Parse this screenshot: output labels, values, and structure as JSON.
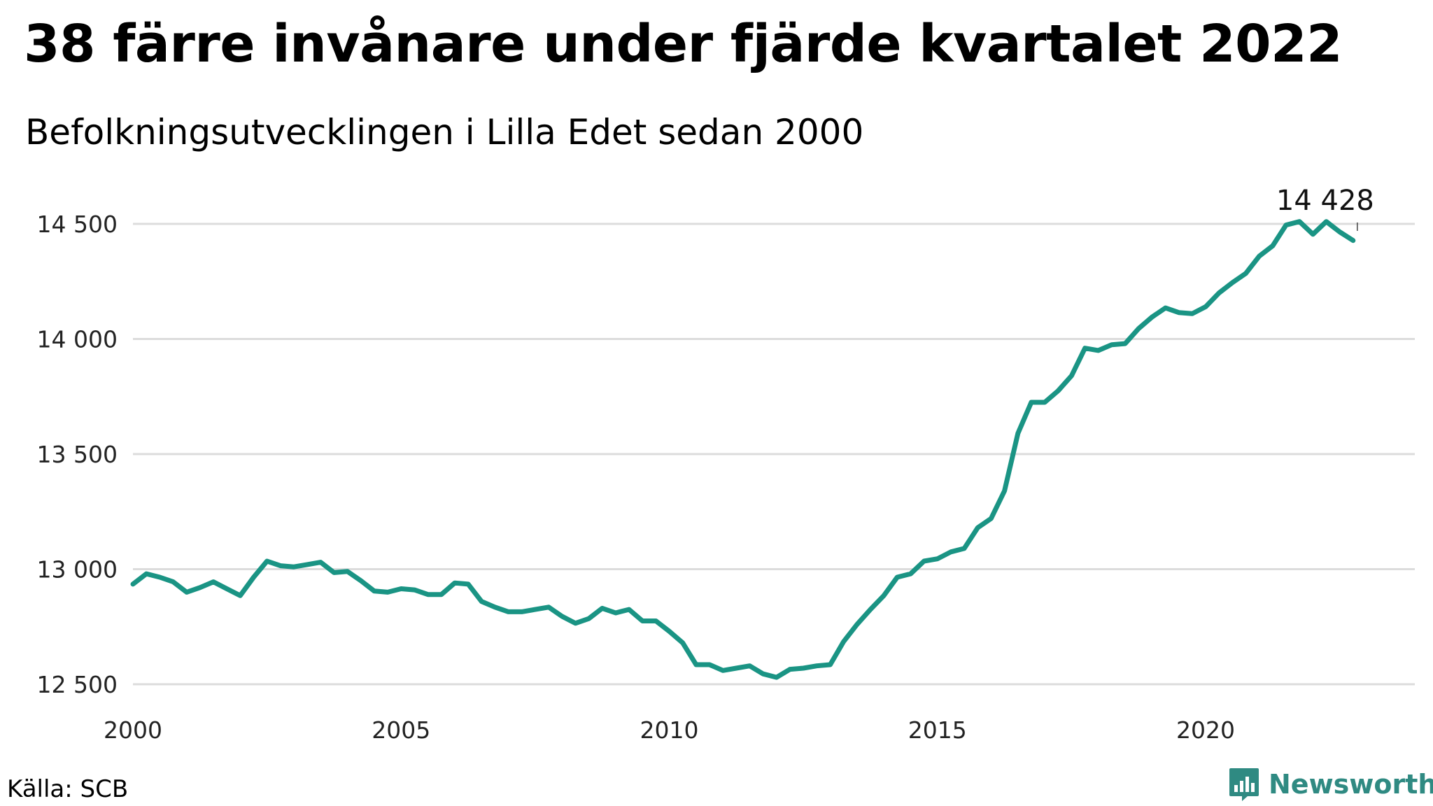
{
  "header": {
    "title": "38 färre invånare under fjärde kvartalet 2022",
    "subtitle": "Befolkningsutvecklingen i Lilla Edet sedan 2000"
  },
  "footer": {
    "source": "Källa: SCB",
    "brand": "Newsworthy"
  },
  "chart_data": {
    "type": "line",
    "title": "38 färre invånare under fjärde kvartalet 2022",
    "subtitle": "Befolkningsutvecklingen i Lilla Edet sedan 2000",
    "xlabel": "",
    "ylabel": "",
    "xlim": [
      2000,
      2023.9
    ],
    "ylim": [
      12500,
      14500
    ],
    "x_ticks": [
      2000,
      2005,
      2010,
      2015,
      2020
    ],
    "x_tick_labels": [
      "2000",
      "2005",
      "2010",
      "2015",
      "2020"
    ],
    "y_ticks": [
      12500,
      13000,
      13500,
      14000,
      14500
    ],
    "y_tick_labels": [
      "12 500",
      "13 000",
      "13 500",
      "14 000",
      "14 500"
    ],
    "grid": "horizontal",
    "line_color": "#1a9484",
    "end_label": "14 428",
    "series": [
      {
        "x": [
          2000.0,
          2000.25,
          2000.5,
          2000.75,
          2001.0,
          2001.25,
          2001.5,
          2001.75,
          2002.0,
          2002.25,
          2002.5,
          2002.75,
          2003.0,
          2003.25,
          2003.5,
          2003.75,
          2004.0,
          2004.25,
          2004.5,
          2004.75,
          2005.0,
          2005.25,
          2005.5,
          2005.75,
          2006.0,
          2006.25,
          2006.5,
          2006.75,
          2007.0,
          2007.25,
          2007.5,
          2007.75,
          2008.0,
          2008.25,
          2008.5,
          2008.75,
          2009.0,
          2009.25,
          2009.5,
          2009.75,
          2010.0,
          2010.25,
          2010.5,
          2010.75,
          2011.0,
          2011.25,
          2011.5,
          2011.75,
          2012.0,
          2012.25,
          2012.5,
          2012.75,
          2013.0,
          2013.25,
          2013.5,
          2013.75,
          2014.0,
          2014.25,
          2014.5,
          2014.75,
          2015.0,
          2015.25,
          2015.5,
          2015.75,
          2016.0,
          2016.25,
          2016.5,
          2016.75,
          2017.0,
          2017.25,
          2017.5,
          2017.75,
          2018.0,
          2018.25,
          2018.5,
          2018.75,
          2019.0,
          2019.25,
          2019.5,
          2019.75,
          2020.0,
          2020.25,
          2020.5,
          2020.75,
          2021.0,
          2021.25,
          2021.5,
          2021.75,
          2022.0,
          2022.25,
          2022.5,
          2022.75
        ],
        "values": [
          12935,
          12980,
          12965,
          12945,
          12900,
          12920,
          12945,
          12915,
          12885,
          12965,
          13035,
          13015,
          13010,
          13020,
          13030,
          12985,
          12990,
          12950,
          12905,
          12900,
          12915,
          12910,
          12890,
          12890,
          12940,
          12935,
          12860,
          12835,
          12815,
          12815,
          12825,
          12835,
          12795,
          12765,
          12785,
          12830,
          12810,
          12825,
          12775,
          12775,
          12730,
          12680,
          12585,
          12585,
          12560,
          12570,
          12580,
          12545,
          12530,
          12565,
          12570,
          12580,
          12585,
          12685,
          12760,
          12825,
          12885,
          12965,
          12980,
          13035,
          13045,
          13075,
          13090,
          13180,
          13220,
          13340,
          13590,
          13725,
          13725,
          13775,
          13840,
          13960,
          13950,
          13975,
          13980,
          14045,
          14095,
          14135,
          14115,
          14110,
          14140,
          14200,
          14245,
          14285,
          14360,
          14405,
          14495,
          14510,
          14455,
          14510,
          14465,
          14428
        ]
      }
    ]
  }
}
